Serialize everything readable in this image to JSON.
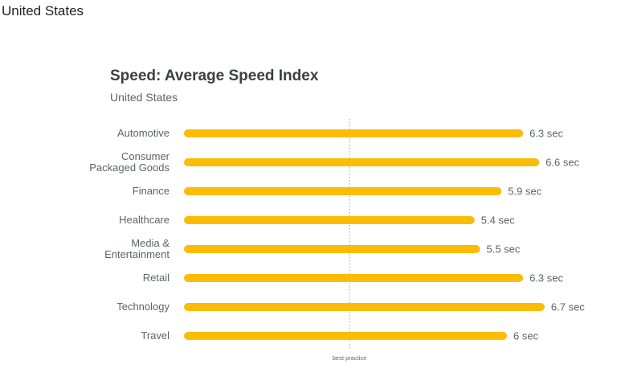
{
  "page": {
    "heading": "United States"
  },
  "chart_data": {
    "type": "bar",
    "orientation": "horizontal",
    "title": "Speed: Average Speed Index",
    "subtitle": "United States",
    "categories": [
      [
        "Automotive"
      ],
      [
        "Consumer",
        "Packaged Goods"
      ],
      [
        "Finance"
      ],
      [
        "Healthcare"
      ],
      [
        "Media &",
        "Entertainment"
      ],
      [
        "Retail"
      ],
      [
        "Technology"
      ],
      [
        "Travel"
      ]
    ],
    "values": [
      6.3,
      6.6,
      5.9,
      5.4,
      5.5,
      6.3,
      6.7,
      6
    ],
    "value_labels": [
      "6.3 sec",
      "6.6 sec",
      "5.9 sec",
      "5.4 sec",
      "5.5 sec",
      "6.3 sec",
      "6.7 sec",
      "6 sec"
    ],
    "unit": "sec",
    "reference_line": {
      "label": "best practice",
      "style": "dotted"
    },
    "bar_color": "#FBBC05",
    "grid": false,
    "legend": "none"
  }
}
